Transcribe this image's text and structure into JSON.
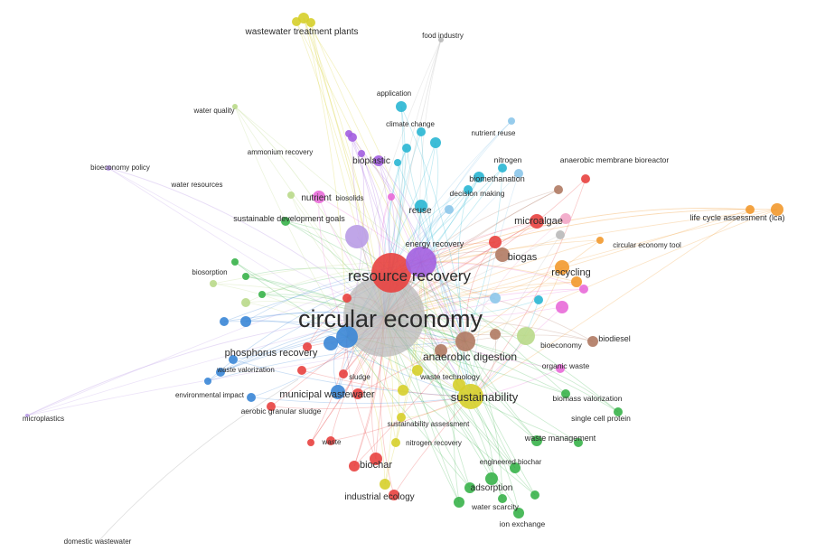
{
  "colors": {
    "red": "#e8413f",
    "grey": "#b9b9b9",
    "blue": "#3a86d6",
    "purple": "#a35fe0",
    "cyan": "#29b6d3",
    "yellow": "#d6cf2a",
    "green": "#39b24a",
    "orange": "#f2992e",
    "pink": "#e86ad8",
    "brown": "#b07a63",
    "lightgreen": "#b9d98a",
    "lightpurple": "#b99ce6",
    "lightblue": "#8cc7ea",
    "lightpink": "#f2a6c8"
  },
  "labels": {
    "circular_economy": "circular economy",
    "resource_recovery": "resource recovery",
    "wastewater_treatment_plants": "wastewater treatment plants",
    "food_industry": "food industry",
    "application": "application",
    "water_quality": "water quality",
    "climate_change": "climate change",
    "nutrient_reuse": "nutrient reuse",
    "ammonium_recovery": "ammonium recovery",
    "nitrogen": "nitrogen",
    "anaerobic_membrane_bioreactor": "anaerobic membrane bioreactor",
    "bioplastic": "bioplastic",
    "bioeconomy_policy": "bioeconomy policy",
    "water_resources": "water resources",
    "nutrient": "nutrient",
    "biosolids": "biosolids",
    "biomethanation": "biomethanation",
    "decision_making": "decision making",
    "reuse": "reuse",
    "microalgae": "microalgae",
    "life_cycle_assessment": "life cycle assessment (lca)",
    "sustainable_development_goals": "sustainable development goals",
    "energy_recovery": "energy recovery",
    "circular_economy_tool": "circular economy tool",
    "biogas": "biogas",
    "recycling": "recycling",
    "biosorption": "biosorption",
    "phosphorus_recovery": "phosphorus recovery",
    "anaerobic_digestion": "anaerobic digestion",
    "bioeconomy": "bioeconomy",
    "biodiesel": "biodiesel",
    "waste_valorization": "waste valorization",
    "organic_waste": "organic waste",
    "waste_technology": "waste technology",
    "sludge": "sludge",
    "environmental_impact": "environmental impact",
    "municipal_wastewater": "municipal wastewater",
    "sustainability": "sustainability",
    "biomass_valorization": "biomass valorization",
    "aerobic_granular_sludge": "aerobic granular sludge",
    "single_cell_protein": "single cell protein",
    "microplastics": "microplastics",
    "sustainability_assessment": "sustainability assessment",
    "waste": "waste",
    "nitrogen_recovery": "nitrogen recovery",
    "waste_management": "waste management",
    "biochar": "biochar",
    "engineered_biochar": "engineered biochar",
    "adsorption": "adsorption",
    "industrial_ecology": "industrial ecology",
    "water_scarcity": "water scarcity",
    "ion_exchange": "ion exchange",
    "domestic_wastewater": "domestic wastewater"
  }
}
